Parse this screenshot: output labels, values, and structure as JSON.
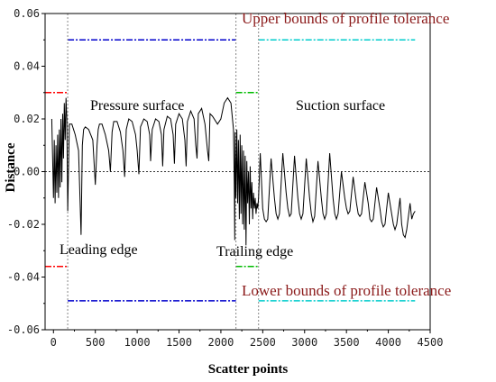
{
  "chart_data": {
    "type": "line",
    "xlabel": "Scatter points",
    "ylabel": "Distance",
    "xlim": [
      -100,
      4500
    ],
    "ylim": [
      -0.06,
      0.06
    ],
    "xticks": [
      0,
      500,
      1000,
      1500,
      2000,
      2500,
      3000,
      3500,
      4000,
      4500
    ],
    "yticks": [
      -0.06,
      -0.04,
      -0.02,
      0.0,
      0.02,
      0.04,
      0.06
    ],
    "ytick_labels": [
      "-0.06",
      "-0.04",
      "-0.02",
      "0.00",
      "0.02",
      "0.04",
      "0.06"
    ],
    "grid": false,
    "annotations": {
      "upper_bounds": "Upper bounds of profile tolerance",
      "lower_bounds": "Lower bounds of profile tolerance",
      "pressure_surface": "Pressure surface",
      "suction_surface": "Suction surface",
      "leading_edge": "Leading edge",
      "trailing_edge": "Trailing edge"
    },
    "region_boundaries_x": [
      170,
      2180,
      2450
    ],
    "tolerance_bounds": [
      {
        "x": [
          -100,
          170
        ],
        "upper": 0.03,
        "lower": -0.036,
        "color": "#ff0000"
      },
      {
        "x": [
          170,
          2180
        ],
        "upper": 0.05,
        "lower": -0.049,
        "color": "#0000cc"
      },
      {
        "x": [
          2180,
          2450
        ],
        "upper": 0.03,
        "lower": -0.036,
        "color": "#00bb00"
      },
      {
        "x": [
          2450,
          4320
        ],
        "upper": 0.05,
        "lower": -0.049,
        "color": "#00cccc"
      }
    ],
    "series": [
      {
        "x": [
          -20,
          0,
          10,
          20,
          30,
          40,
          50,
          60,
          70,
          80,
          90,
          100,
          110,
          120,
          130,
          140,
          150,
          160,
          170,
          190,
          220,
          260,
          300,
          330,
          345,
          360,
          380,
          420,
          470,
          500,
          520,
          535,
          550,
          580,
          620,
          660,
          680,
          700,
          720,
          760,
          800,
          830,
          850,
          870,
          900,
          940,
          980,
          1000,
          1020,
          1040,
          1080,
          1120,
          1150,
          1160,
          1180,
          1220,
          1260,
          1290,
          1305,
          1320,
          1360,
          1400,
          1430,
          1445,
          1460,
          1500,
          1540,
          1570,
          1585,
          1600,
          1640,
          1680,
          1700,
          1715,
          1730,
          1770,
          1810,
          1840,
          1855,
          1870,
          1900,
          1960,
          2000,
          2040,
          2080,
          2120,
          2150,
          2160,
          2165,
          2170,
          2180,
          2190,
          2200,
          2210,
          2220,
          2230,
          2240,
          2250,
          2260,
          2270,
          2280,
          2290,
          2300,
          2310,
          2320,
          2330,
          2340,
          2350,
          2360,
          2370,
          2380,
          2390,
          2400,
          2410,
          2420,
          2430,
          2440,
          2450,
          2470,
          2500,
          2520,
          2540,
          2560,
          2600,
          2640,
          2660,
          2680,
          2700,
          2740,
          2780,
          2800,
          2820,
          2840,
          2880,
          2920,
          2940,
          2960,
          2980,
          3020,
          3060,
          3080,
          3100,
          3120,
          3160,
          3200,
          3220,
          3240,
          3260,
          3300,
          3340,
          3360,
          3380,
          3400,
          3440,
          3480,
          3500,
          3520,
          3540,
          3580,
          3620,
          3640,
          3660,
          3680,
          3720,
          3760,
          3780,
          3800,
          3820,
          3860,
          3900,
          3920,
          3940,
          3960,
          4000,
          4040,
          4060,
          4080,
          4100,
          4140,
          4160,
          4180,
          4200,
          4220,
          4260,
          4280,
          4300,
          4320
        ],
        "y": [
          0.02,
          -0.01,
          0.012,
          -0.012,
          0.01,
          -0.008,
          0.014,
          -0.01,
          0.016,
          -0.006,
          0.02,
          -0.004,
          0.022,
          0.005,
          0.026,
          0.012,
          0.028,
          0.02,
          -0.015,
          0.018,
          0.018,
          0.014,
          0.008,
          -0.024,
          0.01,
          0.016,
          0.017,
          0.016,
          0.012,
          -0.005,
          0.01,
          0.016,
          0.018,
          0.018,
          0.014,
          0.008,
          0.0,
          0.015,
          0.019,
          0.019,
          0.015,
          0.008,
          -0.002,
          0.016,
          0.02,
          0.019,
          0.014,
          0.008,
          -0.001,
          0.017,
          0.02,
          0.019,
          0.014,
          0.004,
          0.016,
          0.02,
          0.019,
          0.014,
          0.002,
          0.016,
          0.021,
          0.02,
          0.014,
          0.003,
          0.018,
          0.022,
          0.02,
          0.012,
          0.002,
          0.019,
          0.023,
          0.02,
          0.01,
          0.005,
          0.022,
          0.024,
          0.018,
          0.008,
          0.004,
          0.022,
          0.021,
          0.018,
          0.02,
          0.026,
          0.028,
          0.026,
          0.016,
          -0.005,
          -0.026,
          0.015,
          -0.01,
          0.016,
          -0.012,
          0.012,
          -0.018,
          0.014,
          -0.016,
          0.01,
          -0.02,
          0.008,
          -0.022,
          0.006,
          -0.028,
          0.004,
          -0.012,
          0.0,
          -0.02,
          0.002,
          -0.014,
          -0.004,
          -0.018,
          -0.008,
          -0.014,
          -0.01,
          -0.016,
          -0.012,
          -0.014,
          -0.01,
          0.007,
          -0.014,
          -0.018,
          -0.019,
          -0.018,
          0.005,
          -0.01,
          -0.016,
          -0.018,
          -0.016,
          0.007,
          -0.008,
          -0.014,
          -0.017,
          -0.016,
          0.006,
          -0.01,
          -0.016,
          -0.018,
          -0.016,
          0.005,
          -0.01,
          -0.016,
          -0.019,
          -0.017,
          0.004,
          -0.01,
          -0.016,
          -0.018,
          -0.016,
          0.007,
          -0.01,
          -0.016,
          -0.018,
          -0.016,
          0.0,
          -0.01,
          -0.014,
          -0.016,
          -0.015,
          -0.002,
          -0.012,
          -0.016,
          -0.017,
          -0.016,
          -0.004,
          -0.012,
          -0.018,
          -0.019,
          -0.018,
          -0.006,
          -0.014,
          -0.019,
          -0.021,
          -0.02,
          -0.008,
          -0.016,
          -0.02,
          -0.022,
          -0.02,
          -0.01,
          -0.02,
          -0.024,
          -0.025,
          -0.022,
          -0.012,
          -0.018,
          -0.016,
          -0.015
        ]
      }
    ]
  }
}
